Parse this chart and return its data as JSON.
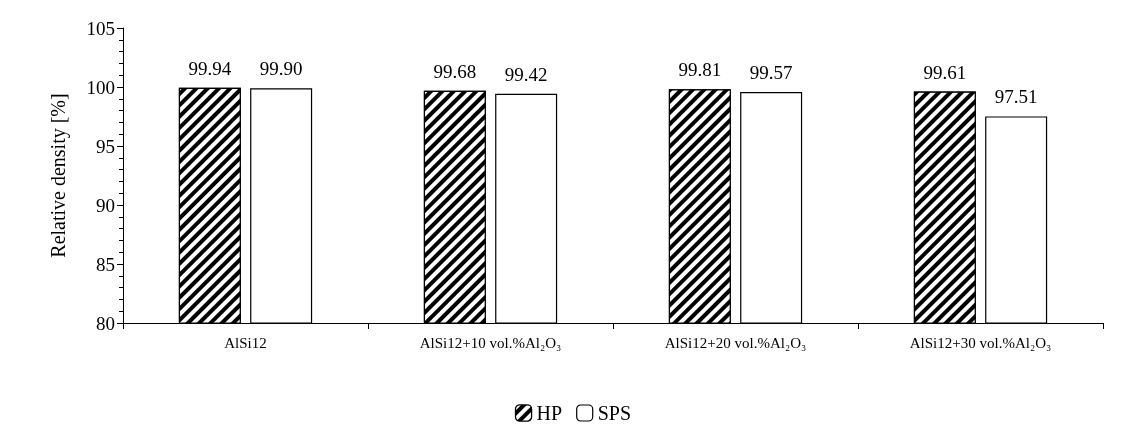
{
  "chart_data": {
    "type": "bar",
    "ylabel": "Relative density [%]",
    "categories": [
      "AlSi12",
      "AlSi12+10 vol.%Al₂O₃",
      "AlSi12+20 vol.%Al₂O₃",
      "AlSi12+30 vol.%Al₂O₃"
    ],
    "series": [
      {
        "name": "HP",
        "color": "#000000",
        "values": [
          99.94,
          99.68,
          99.81,
          99.61
        ],
        "value_labels": [
          "99.94",
          "99.68",
          "99.81",
          "99.61"
        ]
      },
      {
        "name": "SPS",
        "color": "#ffffff",
        "values": [
          99.9,
          99.42,
          99.57,
          97.51
        ],
        "value_labels": [
          "99.90",
          "99.42",
          "99.57",
          "97.51"
        ]
      }
    ],
    "ylim": [
      80,
      105
    ],
    "yticks": [
      80,
      85,
      90,
      95,
      100,
      105
    ],
    "grid": false,
    "legend": "bottom"
  }
}
